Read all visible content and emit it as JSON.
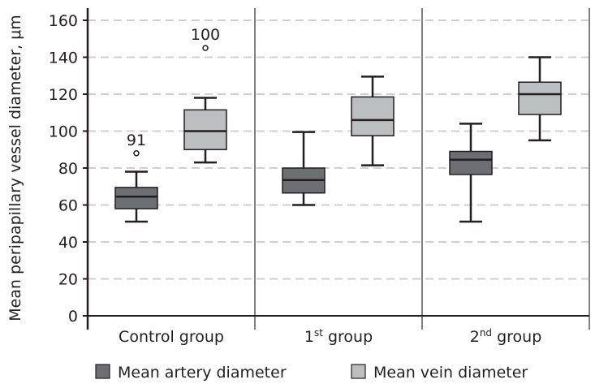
{
  "chart_data": {
    "type": "boxplot",
    "ylabel": "Mean peripapillary vessel diameter, μm",
    "ylim": [
      0,
      160
    ],
    "yticks": [
      0,
      20,
      40,
      60,
      80,
      100,
      120,
      140,
      160
    ],
    "grid": true,
    "legend_position": "bottom",
    "categories": [
      {
        "base": "Control group",
        "sup": "",
        "rest": ""
      },
      {
        "base": "1",
        "sup": "st",
        "rest": " group"
      },
      {
        "base": "2",
        "sup": "nd",
        "rest": " group"
      }
    ],
    "series": [
      {
        "name": "Mean artery diameter",
        "color": "#6d6e71",
        "boxes": [
          {
            "min": 51,
            "q1": 58,
            "median": 64.5,
            "q3": 69.5,
            "max": 78,
            "outliers": [
              {
                "value": 88,
                "label": "91"
              }
            ]
          },
          {
            "min": 60,
            "q1": 66.5,
            "median": 73.5,
            "q3": 80,
            "max": 99.5,
            "outliers": []
          },
          {
            "min": 51,
            "q1": 76.5,
            "median": 84.5,
            "q3": 89,
            "max": 104,
            "outliers": []
          }
        ]
      },
      {
        "name": "Mean vein diameter",
        "color": "#bcbec0",
        "boxes": [
          {
            "min": 83,
            "q1": 90,
            "median": 100,
            "q3": 111.5,
            "max": 118,
            "outliers": [
              {
                "value": 145,
                "label": "100"
              }
            ]
          },
          {
            "min": 81.5,
            "q1": 97.5,
            "median": 106,
            "q3": 118.5,
            "max": 129.5,
            "outliers": []
          },
          {
            "min": 95,
            "q1": 109,
            "median": 120,
            "q3": 126.5,
            "max": 140,
            "outliers": []
          }
        ]
      }
    ]
  }
}
